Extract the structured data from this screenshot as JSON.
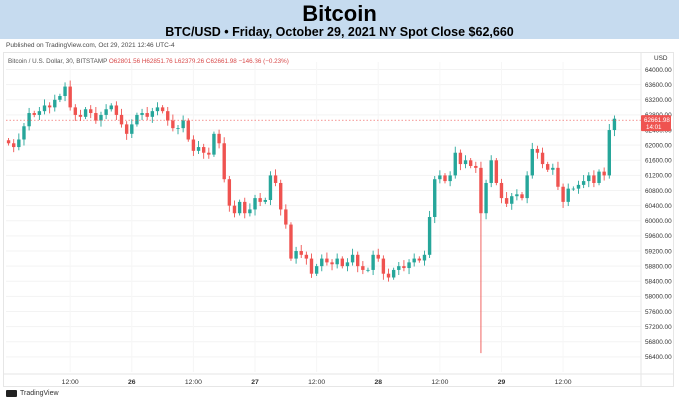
{
  "header": {
    "title": "Bitcoin",
    "subtitle": "BTC/USD • Friday, October 29, 2021 NY Spot Close $62,660"
  },
  "published": "Published on TradingView.com, Oct 29, 2021 12:46 UTC-4",
  "series_label": {
    "name": "Bitcoin / U.S. Dollar, 30, BITSTAMP",
    "ohlc": "O62801.56  H62851.76  L62379.26  C62661.98  −146.36 (−0.23%)"
  },
  "footer": {
    "brand": "TradingView"
  },
  "colors": {
    "up": "#26a69a",
    "down": "#ef5350",
    "banner": "#c6dbef",
    "price_tag": "#ef5350"
  },
  "chart_data": {
    "type": "candlestick",
    "currency": "USD",
    "ylim": [
      56000,
      64200
    ],
    "y_ticks": [
      56400,
      56800,
      57200,
      57600,
      58000,
      58400,
      58800,
      59200,
      59600,
      60000,
      60400,
      60800,
      61200,
      61600,
      62000,
      62400,
      62800,
      63200,
      63600,
      64000
    ],
    "x_ticks": [
      {
        "label": "12:00",
        "bar": 12
      },
      {
        "label": "26",
        "bar": 24
      },
      {
        "label": "12:00",
        "bar": 36
      },
      {
        "label": "27",
        "bar": 48
      },
      {
        "label": "12:00",
        "bar": 60
      },
      {
        "label": "28",
        "bar": 72
      },
      {
        "label": "12:00",
        "bar": 84
      },
      {
        "label": "29",
        "bar": 96
      },
      {
        "label": "12:00",
        "bar": 108
      }
    ],
    "last_price": 62661.98,
    "last_price_label": "62661.98",
    "countdown_label": "14:01",
    "closes": [
      62050,
      61950,
      62150,
      62500,
      62850,
      62800,
      62900,
      63050,
      63000,
      63200,
      63300,
      63550,
      63000,
      62800,
      62750,
      62950,
      62850,
      62650,
      62800,
      62950,
      63050,
      62800,
      62550,
      62300,
      62550,
      62800,
      62850,
      62750,
      62900,
      63000,
      62900,
      62650,
      62450,
      62450,
      62650,
      62150,
      61850,
      61950,
      61800,
      61750,
      62300,
      62050,
      61100,
      60400,
      60200,
      60500,
      60200,
      60300,
      60600,
      60500,
      60550,
      61200,
      61000,
      60300,
      59900,
      59000,
      59200,
      59100,
      59000,
      58600,
      58800,
      59000,
      58900,
      58850,
      59000,
      58800,
      58900,
      59100,
      58800,
      58700,
      58700,
      59100,
      59000,
      58600,
      58500,
      58700,
      58800,
      58750,
      58900,
      59000,
      58950,
      59100,
      60100,
      61100,
      61200,
      61050,
      61200,
      61800,
      61500,
      61600,
      61450,
      61400,
      60200,
      61000,
      61600,
      61000,
      60600,
      60450,
      60650,
      60700,
      60600,
      61200,
      61900,
      61800,
      61500,
      61350,
      61400,
      60900,
      60500,
      60850,
      60850,
      60950,
      61050,
      61200,
      61000,
      61300,
      61200,
      62400,
      62700
    ],
    "annotations": {
      "spike_low": 56500,
      "spike_bar": 92
    }
  }
}
